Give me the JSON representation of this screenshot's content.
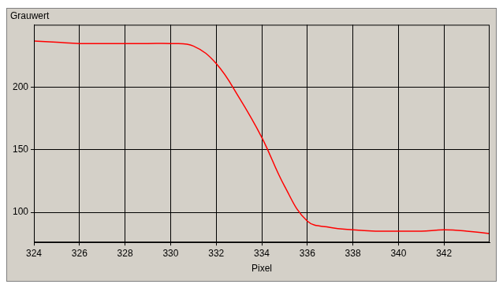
{
  "chart_data": {
    "type": "line",
    "y_label": "Grauwert",
    "x_label": "Pixel",
    "x": [
      324,
      325,
      326,
      327,
      328,
      329,
      330,
      331,
      332,
      333,
      334,
      335,
      336,
      337,
      338,
      339,
      340,
      341,
      342,
      343,
      344
    ],
    "values": [
      237,
      236,
      235,
      235,
      235,
      235,
      235,
      233,
      219,
      192,
      160,
      121,
      93,
      88,
      86,
      85,
      85,
      85,
      86,
      85,
      83
    ],
    "color": "#ff0000",
    "xlim": [
      324,
      344
    ],
    "xticks": [
      324,
      326,
      328,
      330,
      332,
      334,
      336,
      338,
      340,
      342
    ],
    "ylim": [
      76,
      250
    ],
    "yticks": [
      100,
      150,
      200
    ],
    "grid": true
  }
}
